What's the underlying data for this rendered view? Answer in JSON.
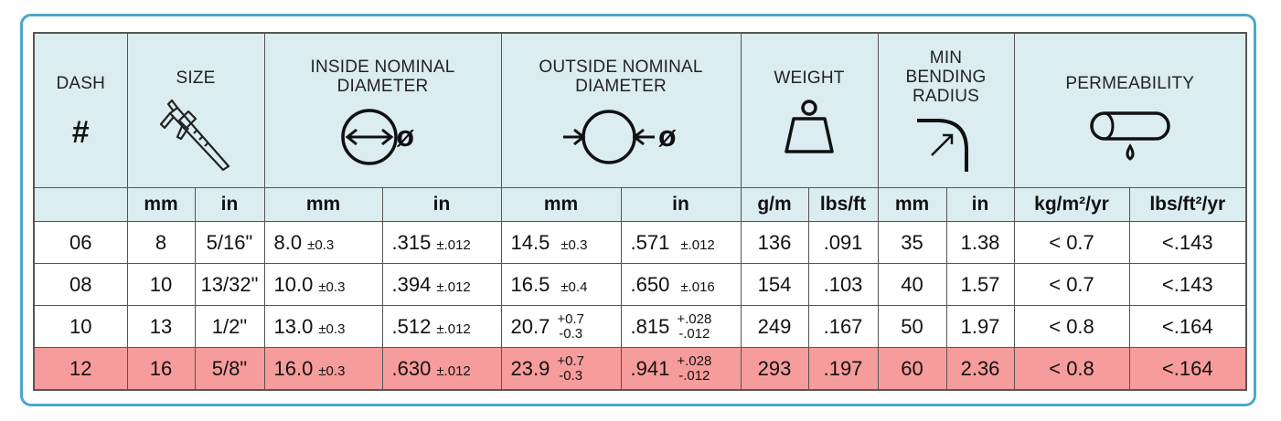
{
  "headers": {
    "dash": "DASH",
    "dash_hash": "#",
    "size": "SIZE",
    "inside_line1": "INSIDE NOMINAL",
    "inside_line2": "DIAMETER",
    "outside_line1": "OUTSIDE NOMINAL",
    "outside_line2": "DIAMETER",
    "weight": "WEIGHT",
    "bend_line1": "MIN",
    "bend_line2": "BENDING",
    "bend_line3": "RADIUS",
    "permeability": "PERMEABILITY",
    "phi": "ø"
  },
  "icons": {
    "size": "caliper-icon",
    "inside": "inside-diameter-icon",
    "outside": "outside-diameter-icon",
    "weight": "weight-icon",
    "bend": "bend-radius-icon",
    "permeability": "permeability-icon"
  },
  "units": [
    "mm",
    "in",
    "mm",
    "in",
    "mm",
    "in",
    "g/m",
    "lbs/ft",
    "mm",
    "in",
    "kg/m²/yr",
    "lbs/ft²/yr"
  ],
  "rows": [
    {
      "dash": "06",
      "size_mm": "8",
      "size_in": "5/16\"",
      "id_mm": "8.0",
      "id_mm_tol": "±0.3",
      "id_in": ".315",
      "id_in_tol": "±.012",
      "od_mm": "14.5",
      "od_mm_tol": "±0.3",
      "od_in": ".571",
      "od_in_tol": "±.012",
      "w_gm": "136",
      "w_lbs": ".091",
      "bend_mm": "35",
      "bend_in": "1.38",
      "perm_kg": "< 0.7",
      "perm_lbs": "<.143"
    },
    {
      "dash": "08",
      "size_mm": "10",
      "size_in": "13/32\"",
      "id_mm": "10.0",
      "id_mm_tol": "±0.3",
      "id_in": ".394",
      "id_in_tol": "±.012",
      "od_mm": "16.5",
      "od_mm_tol": "±0.4",
      "od_in": ".650",
      "od_in_tol": "±.016",
      "w_gm": "154",
      "w_lbs": ".103",
      "bend_mm": "40",
      "bend_in": "1.57",
      "perm_kg": "< 0.7",
      "perm_lbs": "<.143"
    },
    {
      "dash": "10",
      "size_mm": "13",
      "size_in": "1/2\"",
      "id_mm": "13.0",
      "id_mm_tol": "±0.3",
      "id_in": ".512",
      "id_in_tol": "±.012",
      "od_mm": "20.7",
      "od_mm_tol_up": "+0.7",
      "od_mm_tol_down": "-0.3",
      "od_in": ".815",
      "od_in_tol_up": "+.028",
      "od_in_tol_down": "-.012",
      "w_gm": "249",
      "w_lbs": ".167",
      "bend_mm": "50",
      "bend_in": "1.97",
      "perm_kg": "< 0.8",
      "perm_lbs": "<.164"
    },
    {
      "dash": "12",
      "size_mm": "16",
      "size_in": "5/8\"",
      "id_mm": "16.0",
      "id_mm_tol": "±0.3",
      "id_in": ".630",
      "id_in_tol": "±.012",
      "od_mm": "23.9",
      "od_mm_tol_up": "+0.7",
      "od_mm_tol_down": "-0.3",
      "od_in": ".941",
      "od_in_tol_up": "+.028",
      "od_in_tol_down": "-.012",
      "w_gm": "293",
      "w_lbs": ".197",
      "bend_mm": "60",
      "bend_in": "2.36",
      "perm_kg": "< 0.8",
      "perm_lbs": "<.164"
    }
  ],
  "colors": {
    "border": "#4aa8c9",
    "header_bg": "#dcedf1",
    "highlight_row": "#f79c9c"
  }
}
